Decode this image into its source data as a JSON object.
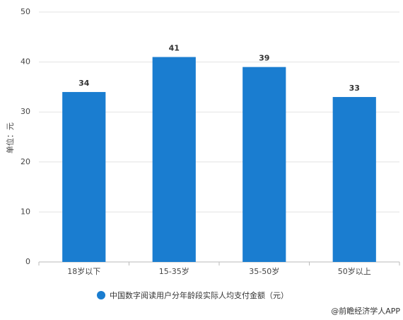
{
  "chart_data": {
    "type": "bar",
    "y_label": "单位：元",
    "categories": [
      "18岁以下",
      "15-35岁",
      "35-50岁",
      "50岁以上"
    ],
    "series": [
      {
        "name": "中国数字阅读用户分年龄段实际人均支付金额（元）",
        "color": "#1a7dd0",
        "values": [
          34,
          41,
          39,
          33
        ]
      }
    ],
    "ylim": [
      0,
      50
    ],
    "yticks": [
      0,
      10,
      20,
      30,
      40,
      50
    ],
    "grid": true,
    "legend": "bottom",
    "source": "@前瞻经济学人APP"
  }
}
